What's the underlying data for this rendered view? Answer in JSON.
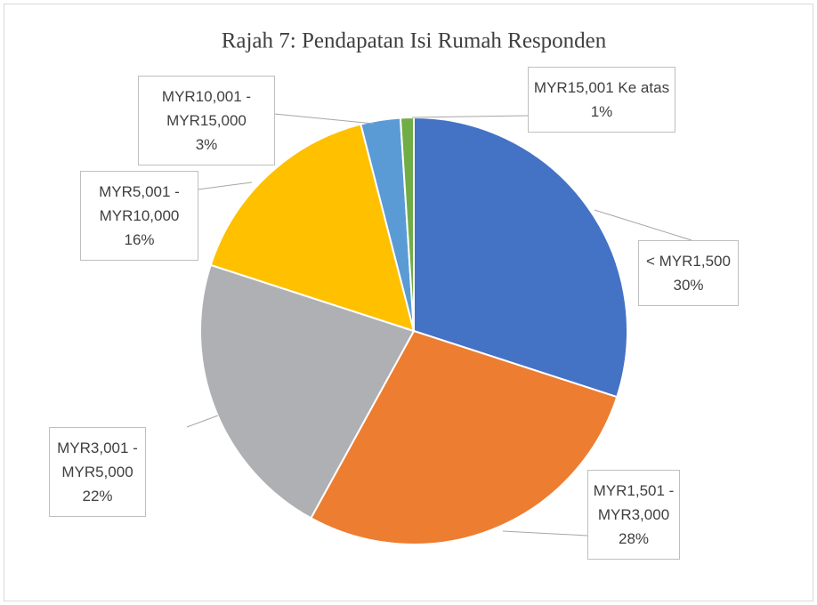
{
  "chart_data": {
    "type": "pie",
    "title": "Rajah 7: Pendapatan Isi Rumah Responden",
    "categories": [
      "< MYR1,500",
      "MYR1,501 - MYR3,000",
      "MYR3,001 - MYR5,000",
      "MYR5,001 - MYR10,000",
      "MYR10,001 - MYR15,000",
      "MYR15,001 Ke atas"
    ],
    "values": [
      30,
      28,
      22,
      16,
      3,
      1
    ],
    "value_labels": [
      "30%",
      "28%",
      "22%",
      "16%",
      "3%",
      "1%"
    ],
    "colors": [
      "#4472c4",
      "#ed7d31",
      "#afb0b3",
      "#ffc000",
      "#5b9bd5",
      "#70ad47"
    ]
  }
}
